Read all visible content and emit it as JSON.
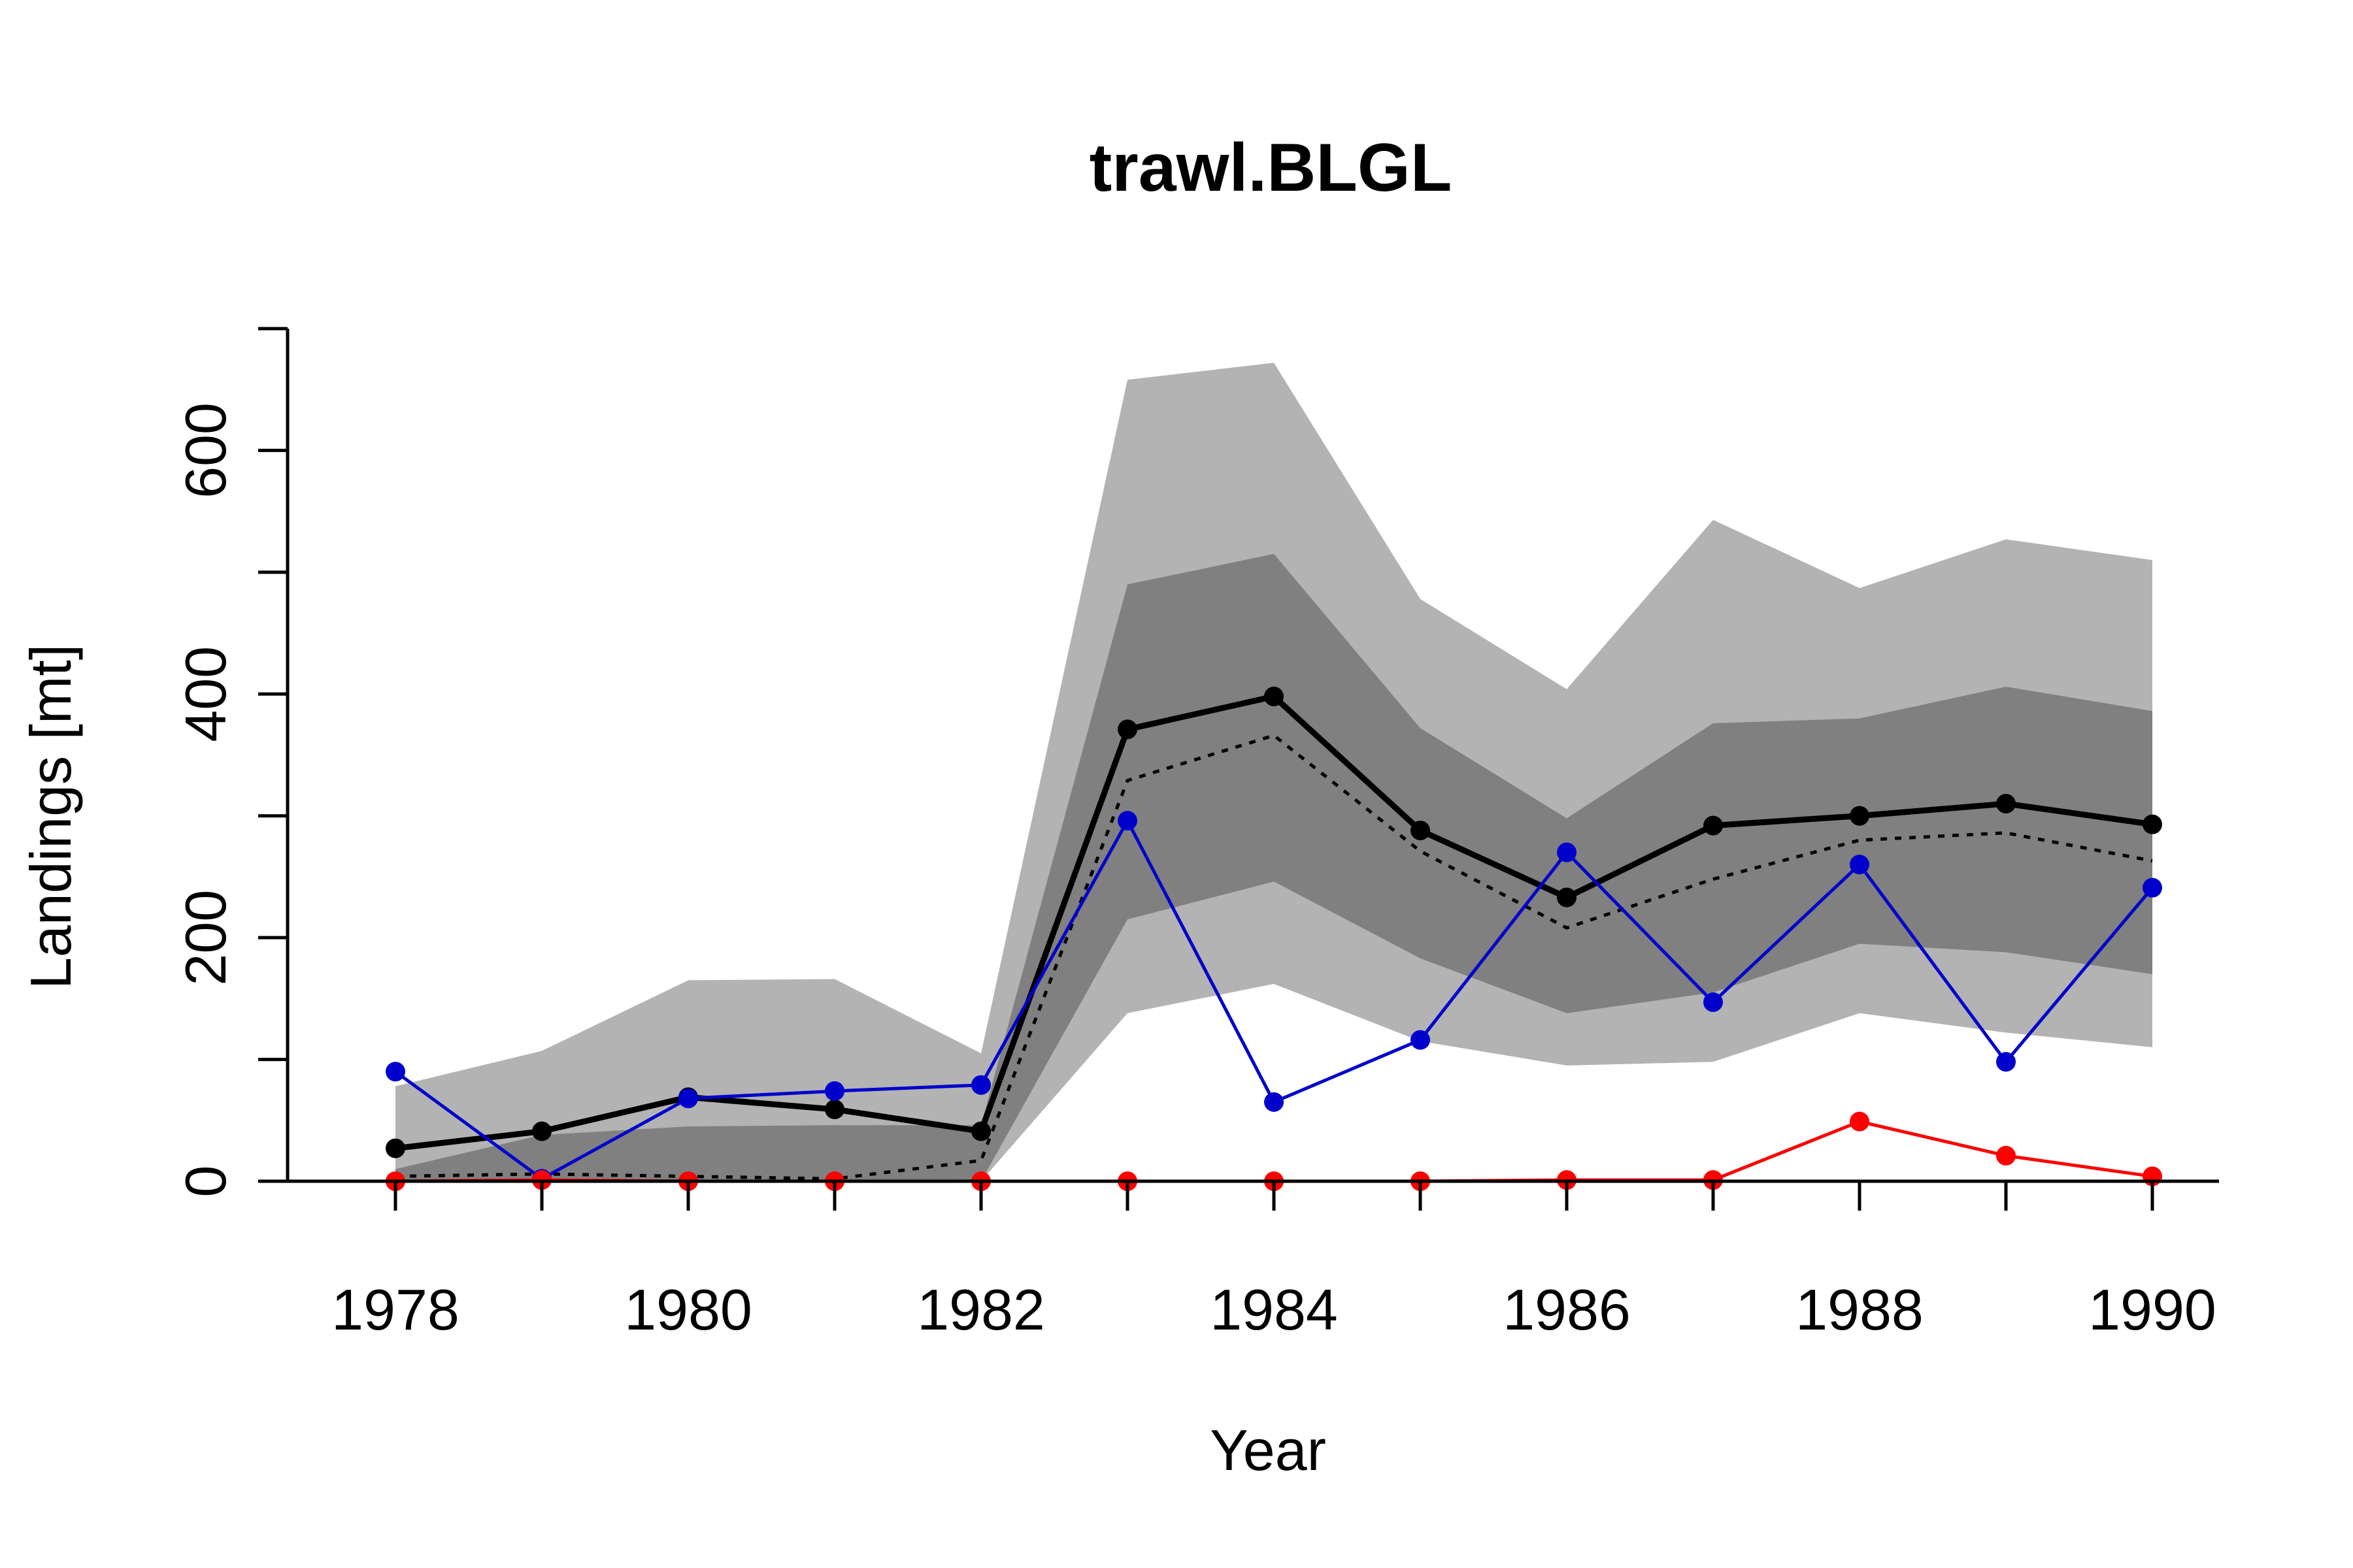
{
  "chart_data": {
    "type": "line",
    "title": "trawl.BLGL",
    "xlabel": "Year",
    "ylabel": "Landings [mt]",
    "xlim": [
      1977.6,
      1990.5
    ],
    "ylim": [
      0,
      700
    ],
    "x": [
      1978,
      1979,
      1980,
      1981,
      1982,
      1983,
      1984,
      1985,
      1986,
      1987,
      1988,
      1989,
      1990
    ],
    "x_ticks": [
      1978,
      1980,
      1982,
      1984,
      1986,
      1988,
      1990
    ],
    "x_tick_labels": [
      "1978",
      "1980",
      "1982",
      "1984",
      "1986",
      "1988",
      "1990"
    ],
    "y_ticks": [
      0,
      100,
      200,
      300,
      400,
      500,
      600,
      700
    ],
    "y_tick_labels": [
      "0",
      "",
      "200",
      "",
      "400",
      "",
      "600",
      ""
    ],
    "grid": false,
    "bands": [
      {
        "level": "outer",
        "color": "#b3b3b3",
        "lower": [
          0,
          0,
          0,
          0,
          0,
          138,
          162,
          115,
          95,
          98,
          138,
          122,
          110
        ],
        "upper": [
          78,
          107,
          165,
          166,
          105,
          658,
          672,
          478,
          404,
          543,
          487,
          527,
          510
        ]
      },
      {
        "level": "inner",
        "color": "#808080",
        "lower": [
          0,
          0,
          0,
          0,
          0,
          215,
          246,
          183,
          138,
          155,
          195,
          188,
          170
        ],
        "upper": [
          10,
          38,
          45,
          46,
          46,
          490,
          515,
          372,
          298,
          376,
          380,
          406,
          386
        ]
      }
    ],
    "series": [
      {
        "style": "solid-thick",
        "color": "#000000",
        "markers": true,
        "values": [
          27,
          41,
          69,
          59,
          41,
          371,
          398,
          288,
          233,
          292,
          300,
          310,
          293
        ]
      },
      {
        "style": "dotted",
        "color": "#000000",
        "markers": false,
        "values": [
          4,
          6,
          4,
          2,
          17,
          329,
          366,
          271,
          208,
          248,
          280,
          286,
          263
        ]
      },
      {
        "style": "solid-thin",
        "color": "#0000cc",
        "markers": true,
        "values": [
          90,
          2,
          68,
          74,
          79,
          296,
          65,
          116,
          270,
          147,
          260,
          98,
          241
        ]
      },
      {
        "style": "solid-thin",
        "color": "#ff0000",
        "markers": true,
        "values": [
          0,
          1,
          0,
          0,
          0,
          0,
          0,
          0,
          1,
          1,
          49,
          21,
          4
        ]
      }
    ]
  }
}
